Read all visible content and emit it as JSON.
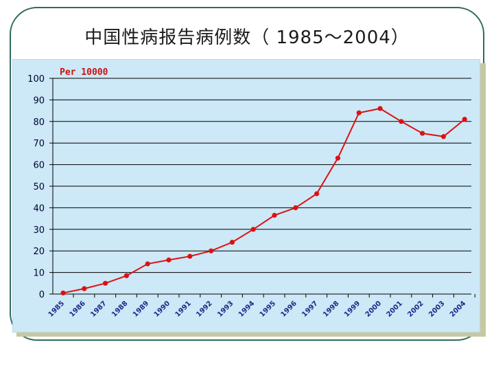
{
  "slide": {
    "title": "中国性病报告病例数（ 1985～2004）"
  },
  "chart_data": {
    "type": "line",
    "title": "中国性病报告病例数（ 1985～2004）",
    "unit_label": "Per 10000",
    "xlabel": "",
    "ylabel": "",
    "ylim": [
      0,
      100
    ],
    "yticks": [
      0,
      10,
      20,
      30,
      40,
      50,
      60,
      70,
      80,
      90,
      100
    ],
    "grid": true,
    "legend": "none",
    "color": "#dd1111",
    "x": [
      "1985",
      "1986",
      "1987",
      "1988",
      "1989",
      "1990",
      "1991",
      "1992",
      "1993",
      "1994",
      "1995",
      "1996",
      "1997",
      "1998",
      "1999",
      "2000",
      "2001",
      "2002",
      "2003",
      "2004"
    ],
    "values": [
      0.5,
      2.5,
      5,
      8.5,
      14,
      15.8,
      17.5,
      20,
      24,
      30,
      36.5,
      40,
      46.5,
      63,
      84,
      86,
      80,
      74.5,
      73,
      81
    ]
  }
}
